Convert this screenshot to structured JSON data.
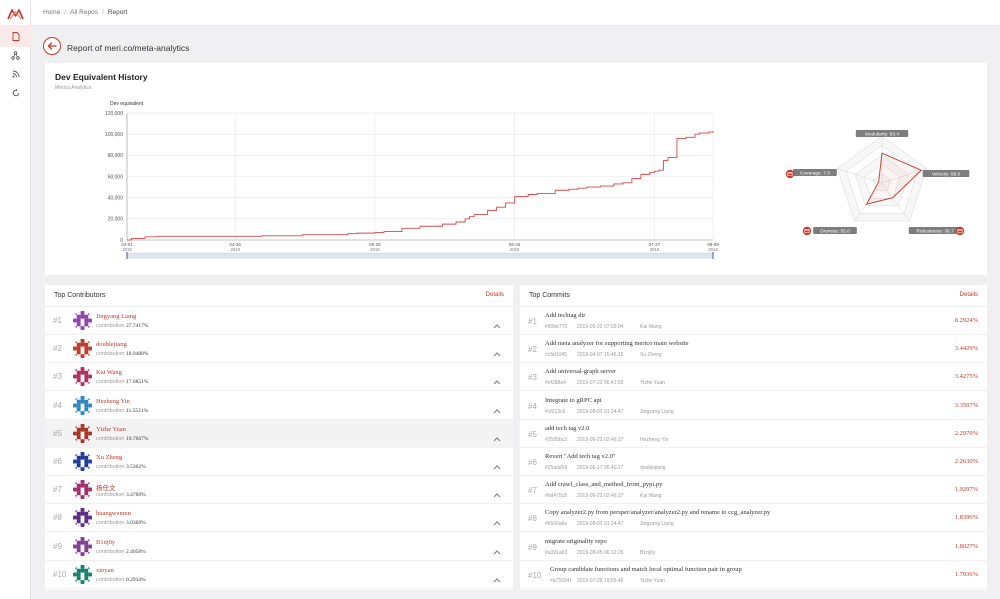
{
  "breadcrumb": {
    "home": "Home",
    "all_repos": "All Repos",
    "current": "Report"
  },
  "page": {
    "title": "Report of meri.co/meta-analytics"
  },
  "chart_card": {
    "title": "Dev Equivalent History",
    "subtitle": "Merico Analytics"
  },
  "chart_data": [
    {
      "type": "line",
      "ylabel": "Dev equivalent",
      "ylim": [
        0,
        120000
      ],
      "yticks": [
        "0",
        "20,000",
        "40,000",
        "60,000",
        "80,000",
        "100,000",
        "120,000"
      ],
      "xticks": [
        {
          "d": "04-01",
          "y": "2018"
        },
        {
          "d": "04-25",
          "y": "2018"
        },
        {
          "d": "05-26",
          "y": "2018"
        },
        {
          "d": "06-26",
          "y": "2018"
        },
        {
          "d": "07-27",
          "y": "2018"
        },
        {
          "d": "08-09",
          "y": "2018"
        }
      ],
      "series": [
        {
          "x": [
            "2018-04-01",
            "2018-04-02",
            "2018-04-05",
            "2018-04-08",
            "2018-05-01",
            "2018-05-10",
            "2018-05-20",
            "2018-05-22",
            "2018-05-26",
            "2018-05-28",
            "2018-06-01",
            "2018-06-05",
            "2018-06-10",
            "2018-06-13",
            "2018-06-15",
            "2018-06-16",
            "2018-06-17",
            "2018-06-20",
            "2018-06-22",
            "2018-06-24",
            "2018-06-26",
            "2018-06-29",
            "2018-07-01",
            "2018-07-05",
            "2018-07-08",
            "2018-07-10",
            "2018-07-12",
            "2018-07-15",
            "2018-07-18",
            "2018-07-20",
            "2018-07-22",
            "2018-07-24",
            "2018-07-26",
            "2018-07-27",
            "2018-07-28",
            "2018-07-29",
            "2018-07-30",
            "2018-08-01",
            "2018-08-03",
            "2018-08-05",
            "2018-08-06",
            "2018-08-08",
            "2018-08-09"
          ],
          "values": [
            0,
            1500,
            3000,
            3500,
            4000,
            5000,
            6000,
            6500,
            7000,
            8000,
            11000,
            13000,
            15000,
            17000,
            20000,
            22000,
            24000,
            28000,
            31000,
            35000,
            41000,
            43000,
            44000,
            47000,
            48000,
            49000,
            50000,
            51000,
            53000,
            54000,
            58000,
            62000,
            64000,
            65000,
            66000,
            75000,
            78000,
            96000,
            97000,
            100000,
            101000,
            102000,
            103000
          ]
        }
      ]
    },
    {
      "type": "radar",
      "axes": [
        "Modularity",
        "Velocity",
        "Robustness",
        "Dryness",
        "Coverage"
      ],
      "values": [
        63.4,
        88.0,
        38.7,
        55.8,
        7.5
      ],
      "labels": [
        "Modularity: 63.4",
        "Velocity: 88.0",
        "Robustness: 38.7",
        "Dryness: 55.8",
        "Coverage: 7.5"
      ],
      "max": 100,
      "color": "#c0392b"
    }
  ],
  "contributors": {
    "title": "Top Contributors",
    "details": "Details",
    "contribution_label": "contribution",
    "items": [
      {
        "rank": "#1",
        "name": "Jingyang Liang",
        "pct": "27.7417%",
        "color": "#8e44ad"
      },
      {
        "rank": "#2",
        "name": "doublejiang",
        "pct": "18.9488%",
        "color": "#c0392b"
      },
      {
        "rank": "#3",
        "name": "Kai Wang",
        "pct": "17.6851%",
        "color": "#b03060"
      },
      {
        "rank": "#4",
        "name": "Hezheng Yin",
        "pct": "11.5521%",
        "color": "#2e86c1"
      },
      {
        "rank": "#5",
        "name": "Yizhe Yuan",
        "pct": "10.7667%",
        "color": "#a93226"
      },
      {
        "rank": "#6",
        "name": "Xu Zheng",
        "pct": "3.5363%",
        "color": "#1f3a93"
      },
      {
        "rank": "#7",
        "name": "扬任文",
        "pct": "3.4769%",
        "color": "#9b2f6b"
      },
      {
        "rank": "#8",
        "name": "huangwenren",
        "pct": "3.0369%",
        "color": "#5b2c83"
      },
      {
        "rank": "#9",
        "name": "B1nj0y",
        "pct": "2.4058%",
        "color": "#7d3c98"
      },
      {
        "rank": "#10",
        "name": "xinyan",
        "pct": "0.2934%",
        "color": "#17806d"
      }
    ]
  },
  "commits": {
    "title": "Top Commits",
    "details": "Details",
    "items": [
      {
        "rank": "#1",
        "msg": "Add techtag dir",
        "hash": "#60be770",
        "date": "2019-05-22 07:03:04",
        "author": "Kai Wang",
        "pct": "8.2924%"
      },
      {
        "rank": "#2",
        "msg": "Add meta analyzer for supporting merico main website",
        "hash": "#c5d1045",
        "date": "2019-04-07 15:46:15",
        "author": "Xu Zheng",
        "pct": "3.4429%"
      },
      {
        "rank": "#3",
        "msg": "Add universal-graph server",
        "hash": "#ef288a4",
        "date": "2019-07-22 06:41:59",
        "author": "Yizhe Yuan",
        "pct": "3.4275%"
      },
      {
        "rank": "#4",
        "msg": "Integrate to gRPC api",
        "hash": "#cf213c6",
        "date": "2019-08-02 01:24:47",
        "author": "Jingyang Liang",
        "pct": "3.3507%"
      },
      {
        "rank": "#5",
        "msg": "add tech tag v2.0",
        "hash": "#2595bc3",
        "date": "2019-06-23 02:46:37",
        "author": "Hezheng Yin",
        "pct": "2.2970%"
      },
      {
        "rank": "#6",
        "msg": "Revert \"Add tech tag v2.0\"",
        "hash": "#25ada59",
        "date": "2019-06-17 05:40:17",
        "author": "doublejiang",
        "pct": "2.2630%"
      },
      {
        "rank": "#7",
        "msg": "Add crawl_class_and_method_from_pypi.py",
        "hash": "#bd475c8",
        "date": "2019-06-23 02:46:37",
        "author": "Kai Wang",
        "pct": "1.9297%"
      },
      {
        "rank": "#8",
        "msg": "Copy analyzer2.py from persper/analyzer/analyzer2.py and rename to ccg_analyzer.py",
        "hash": "#b560a6e",
        "date": "2019-08-02 01:24:47",
        "author": "Jingyang Liang",
        "pct": "1.8396%"
      },
      {
        "rank": "#9",
        "msg": "migrate originality repo",
        "hash": "#a391a63",
        "date": "2019-08-05 06:12:25",
        "author": "B1nj0y",
        "pct": "1.8027%"
      },
      {
        "rank": "#10",
        "msg": "Group candidate functions and match local optimal function pair in group",
        "hash": "#a75924f",
        "date": "2019-07-28 19:55:46",
        "author": "Yizhe Yuan",
        "pct": "1.7036%"
      }
    ]
  }
}
